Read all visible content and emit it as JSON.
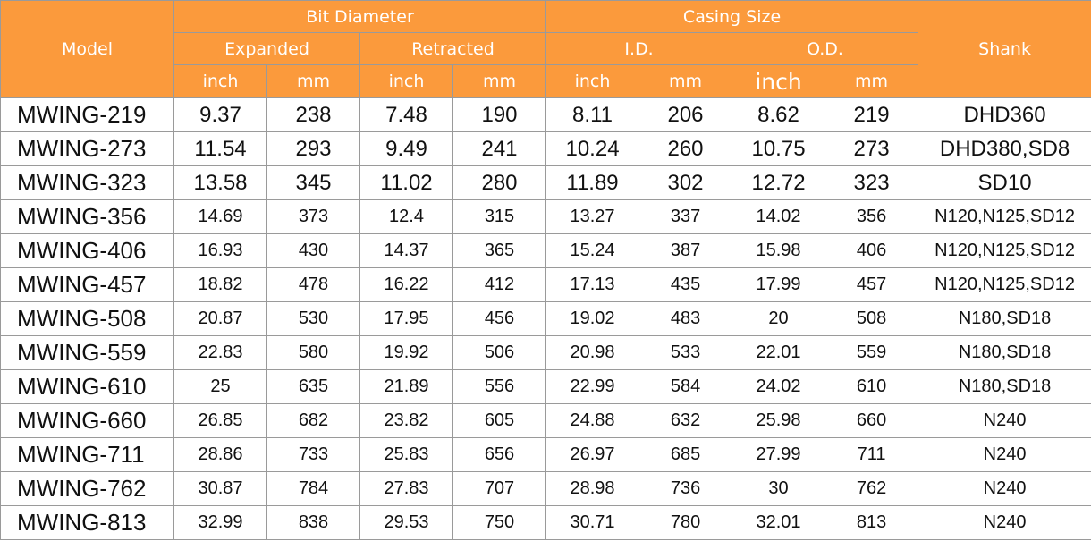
{
  "header": {
    "model": "Model",
    "bit_diameter": "Bit Diameter",
    "casing_size": "Casing Size",
    "shank": "Shank",
    "expanded": "Expanded",
    "retracted": "Retracted",
    "id": "I.D.",
    "od": "O.D.",
    "units": [
      "inch",
      "mm",
      "inch",
      "mm",
      "inch",
      "mm",
      "inch",
      "mm"
    ]
  },
  "rows": [
    {
      "model": "MWING-219",
      "cells": [
        "9.37",
        "238",
        "7.48",
        "190",
        "8.11",
        "206",
        "8.62",
        "219"
      ],
      "shank": "DHD360"
    },
    {
      "model": "MWING-273",
      "cells": [
        "11.54",
        "293",
        "9.49",
        "241",
        "10.24",
        "260",
        "10.75",
        "273"
      ],
      "shank": "DHD380,SD8"
    },
    {
      "model": "MWING-323",
      "cells": [
        "13.58",
        "345",
        "11.02",
        "280",
        "11.89",
        "302",
        "12.72",
        "323"
      ],
      "shank": "SD10"
    },
    {
      "model": "MWING-356",
      "cells": [
        "14.69",
        "373",
        "12.4",
        "315",
        "13.27",
        "337",
        "14.02",
        "356"
      ],
      "shank": "N120,N125,SD12"
    },
    {
      "model": "MWING-406",
      "cells": [
        "16.93",
        "430",
        "14.37",
        "365",
        "15.24",
        "387",
        "15.98",
        "406"
      ],
      "shank": "N120,N125,SD12"
    },
    {
      "model": "MWING-457",
      "cells": [
        "18.82",
        "478",
        "16.22",
        "412",
        "17.13",
        "435",
        "17.99",
        "457"
      ],
      "shank": "N120,N125,SD12"
    },
    {
      "model": "MWING-508",
      "cells": [
        "20.87",
        "530",
        "17.95",
        "456",
        "19.02",
        "483",
        "20",
        "508"
      ],
      "shank": "N180,SD18"
    },
    {
      "model": "MWING-559",
      "cells": [
        "22.83",
        "580",
        "19.92",
        "506",
        "20.98",
        "533",
        "22.01",
        "559"
      ],
      "shank": "N180,SD18"
    },
    {
      "model": "MWING-610",
      "cells": [
        "25",
        "635",
        "21.89",
        "556",
        "22.99",
        "584",
        "24.02",
        "610"
      ],
      "shank": "N180,SD18"
    },
    {
      "model": "MWING-660",
      "cells": [
        "26.85",
        "682",
        "23.82",
        "605",
        "24.88",
        "632",
        "25.98",
        "660"
      ],
      "shank": "N240"
    },
    {
      "model": "MWING-711",
      "cells": [
        "28.86",
        "733",
        "25.83",
        "656",
        "26.97",
        "685",
        "27.99",
        "711"
      ],
      "shank": "N240"
    },
    {
      "model": "MWING-762",
      "cells": [
        "30.87",
        "784",
        "27.83",
        "707",
        "28.98",
        "736",
        "30",
        "762"
      ],
      "shank": "N240"
    },
    {
      "model": "MWING-813",
      "cells": [
        "32.99",
        "838",
        "29.53",
        "750",
        "30.71",
        "780",
        "32.01",
        "813"
      ],
      "shank": "N240"
    }
  ]
}
